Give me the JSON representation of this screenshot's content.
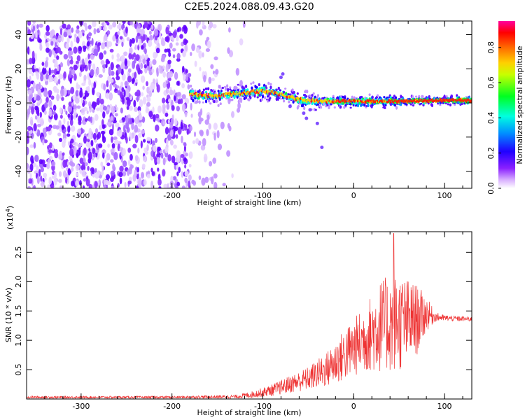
{
  "title": "C2E5.2024.088.09.43.G20",
  "chart_data": [
    {
      "type": "heatmap",
      "name": "spectrogram",
      "xlabel": "Height of straight line (km)",
      "ylabel": "Frequency (Hz)",
      "xlim": [
        -360,
        130
      ],
      "ylim": [
        -50,
        48
      ],
      "xticks": [
        -300,
        -200,
        -100,
        0,
        100
      ],
      "yticks": [
        -40,
        -20,
        0,
        20,
        40
      ],
      "colorbar": {
        "label": "Normalized spectral amplitude",
        "range": [
          0.0,
          0.95
        ],
        "ticks": [
          0.0,
          0.2,
          0.4,
          0.6,
          0.8
        ],
        "tick_labels": [
          "0.0",
          "0.2",
          "0.4",
          "0.6",
          "0.8"
        ],
        "colormap": [
          "#ffffff",
          "#a040ff",
          "#3000ff",
          "#0080ff",
          "#00ffe0",
          "#00ff00",
          "#ffff00",
          "#ff8000",
          "#ff0000",
          "#ff00a0"
        ]
      },
      "features": {
        "noise_region_x": [
          -360,
          -130
        ],
        "signal_start_x": -180,
        "signal_center_freq": [
          [
            -180,
            5
          ],
          [
            -150,
            4
          ],
          [
            -120,
            6
          ],
          [
            -100,
            7
          ],
          [
            -80,
            5
          ],
          [
            -60,
            2
          ],
          [
            -40,
            1
          ],
          [
            0,
            1
          ],
          [
            50,
            1
          ],
          [
            100,
            1.5
          ],
          [
            130,
            1.5
          ]
        ],
        "signal_peak_amplitude": 0.9
      }
    },
    {
      "type": "line",
      "name": "snr",
      "xlabel": "Height of straight line (km)",
      "ylabel": "SNR (10 * v/v)",
      "scale_label": "(x10",
      "scale_exp": "4",
      "scale_close": ")",
      "xlim": [
        -360,
        130
      ],
      "ylim": [
        0.0,
        2.85
      ],
      "xticks": [
        -300,
        -200,
        -100,
        0,
        100
      ],
      "yticks": [
        0.5,
        1.0,
        1.5,
        2.0,
        2.5
      ],
      "ytick_labels": [
        "0.5",
        "1.0",
        "1.5",
        "2.0",
        "2.5"
      ],
      "color": "#ee3333",
      "envelope": {
        "x": [
          -360,
          -200,
          -130,
          -110,
          -90,
          -70,
          -50,
          -30,
          -10,
          10,
          30,
          50,
          70,
          80,
          90,
          100,
          110,
          130
        ],
        "mean": [
          0.03,
          0.03,
          0.04,
          0.08,
          0.15,
          0.25,
          0.35,
          0.5,
          0.75,
          1.0,
          1.25,
          1.3,
          1.35,
          1.45,
          1.4,
          1.38,
          1.37,
          1.36
        ],
        "spread": [
          0.02,
          0.02,
          0.03,
          0.06,
          0.1,
          0.15,
          0.2,
          0.3,
          0.45,
          0.55,
          0.8,
          0.85,
          0.6,
          0.3,
          0.08,
          0.05,
          0.05,
          0.04
        ]
      },
      "peak": {
        "x": 44,
        "y": 2.82
      }
    }
  ]
}
